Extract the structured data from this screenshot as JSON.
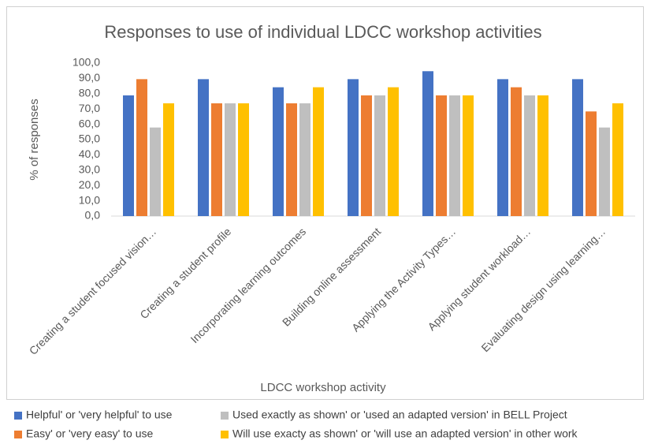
{
  "chart_data": {
    "type": "bar",
    "title": "Responses to use of individual LDCC workshop activities",
    "x_label": "LDCC workshop activity",
    "y_label": "% of responses",
    "categories": [
      "Creating a student focused vision…",
      "Creating a student profile",
      "Incorporating learning outcomes",
      "Building online assessment",
      "Applying the Activity Types…",
      "Applying student workload…",
      "Evaluating design using learning…"
    ],
    "series": [
      {
        "name": "Helpful' or 'very helpful' to use",
        "color": "#4472c4",
        "values": [
          78.9,
          89.5,
          84.2,
          89.5,
          94.7,
          89.5,
          89.5
        ]
      },
      {
        "name": "Easy' or 'very easy' to use",
        "color": "#ed7d31",
        "values": [
          89.5,
          73.7,
          73.7,
          78.9,
          78.9,
          84.2,
          68.4
        ]
      },
      {
        "name": "Used exactly as shown' or 'used an adapted version' in BELL Project",
        "color": "#bfbfbf",
        "values": [
          57.9,
          73.7,
          73.7,
          78.9,
          78.9,
          78.9,
          57.9
        ]
      },
      {
        "name": "Will use exacty as shown' or 'will use an adapted version' in other work",
        "color": "#ffc000",
        "values": [
          73.7,
          73.7,
          84.2,
          84.2,
          78.9,
          78.9,
          73.7
        ]
      }
    ],
    "ylim": [
      0,
      100
    ],
    "yticks": [
      {
        "value": 0,
        "label": "0,0"
      },
      {
        "value": 10,
        "label": "10,0"
      },
      {
        "value": 20,
        "label": "20,0"
      },
      {
        "value": 30,
        "label": "30,0"
      },
      {
        "value": 40,
        "label": "40,0"
      },
      {
        "value": 50,
        "label": "50,0"
      },
      {
        "value": 60,
        "label": "60,0"
      },
      {
        "value": 70,
        "label": "70,0"
      },
      {
        "value": 80,
        "label": "80,0"
      },
      {
        "value": 90,
        "label": "90,0"
      },
      {
        "value": 100,
        "label": "100,0"
      }
    ],
    "grid": false
  }
}
